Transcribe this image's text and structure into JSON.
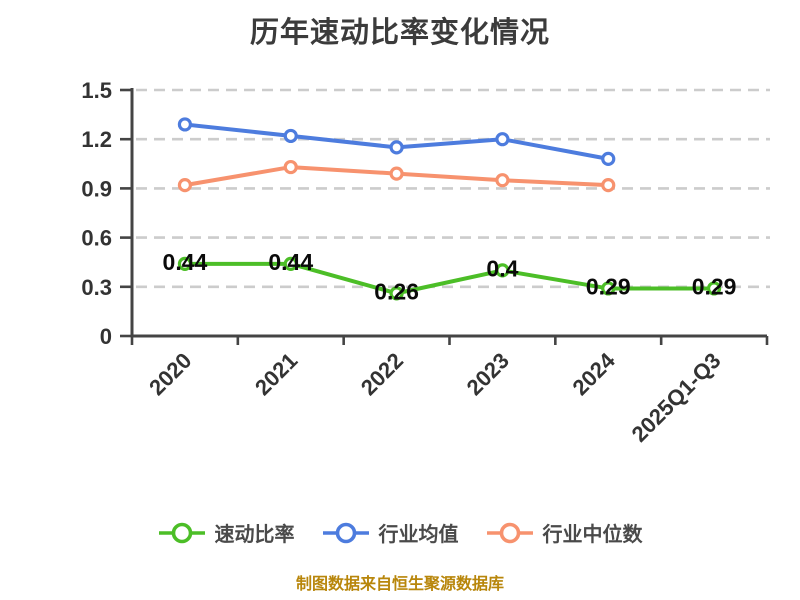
{
  "chart_data": {
    "type": "line",
    "title": "历年速动比率变化情况",
    "categories": [
      "2020",
      "2021",
      "2022",
      "2023",
      "2024",
      "2025Q1-Q3"
    ],
    "series": [
      {
        "name": "速动比率",
        "color": "#4cbe27",
        "values": [
          0.44,
          0.44,
          0.26,
          0.4,
          0.29,
          0.29
        ],
        "point_labels": [
          "0.44",
          "0.44",
          "0.26",
          "0.4",
          "0.29",
          "0.29"
        ],
        "show_point_labels": true
      },
      {
        "name": "行业均值",
        "color": "#4d7cde",
        "values": [
          1.29,
          1.22,
          1.15,
          1.2,
          1.08,
          null
        ],
        "show_point_labels": false
      },
      {
        "name": "行业中位数",
        "color": "#f7926e",
        "values": [
          0.92,
          1.03,
          0.99,
          0.95,
          0.92,
          null
        ],
        "show_point_labels": false
      }
    ],
    "ylim": [
      0,
      1.5
    ],
    "y_ticks": [
      "0",
      "0.3",
      "0.6",
      "0.9",
      "1.2",
      "1.5"
    ],
    "grid": "horizontal-dashed",
    "legend_position": "bottom",
    "source_note": "制图数据来自恒生聚源数据库"
  },
  "style": {
    "background": "#ffffff",
    "title_color": "#3b3b3b",
    "axis_color": "#444444",
    "axis_label_color": "#333333",
    "grid_color": "#cccccc",
    "data_label_color": "#0a0a0a",
    "legend_label_color": "#4a4a4a",
    "source_note_color": "#b8860b"
  }
}
